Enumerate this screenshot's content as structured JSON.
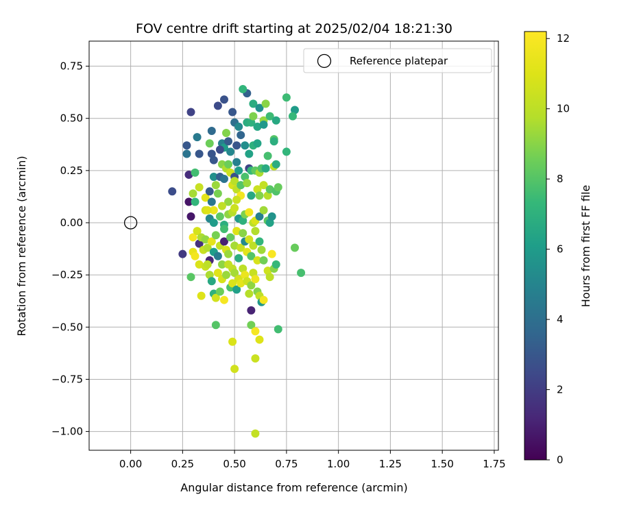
{
  "chart_data": {
    "type": "scatter",
    "title": "FOV centre drift starting at 2025/02/04 18:21:30",
    "xlabel": "Angular distance from reference (arcmin)",
    "ylabel": "Rotation from reference (arcmin)",
    "xlim": [
      -0.2,
      1.77
    ],
    "ylim": [
      -1.09,
      0.87
    ],
    "xticks": [
      0.0,
      0.25,
      0.5,
      0.75,
      1.0,
      1.25,
      1.5,
      1.75
    ],
    "xtick_labels": [
      "0.00",
      "0.25",
      "0.50",
      "0.75",
      "1.00",
      "1.25",
      "1.50",
      "1.75"
    ],
    "yticks": [
      0.75,
      0.5,
      0.25,
      0.0,
      -0.25,
      -0.5,
      -0.75,
      -1.0
    ],
    "ytick_labels": [
      "0.75",
      "0.50",
      "0.25",
      "0.00",
      "−0.25",
      "−0.50",
      "−0.75",
      "−1.00"
    ],
    "grid": true,
    "legend": {
      "position": "top-right",
      "entries": [
        "Reference platepar"
      ]
    },
    "colormap": "viridis",
    "colorbar": {
      "label": "Hours from first FF file",
      "min": 0,
      "max": 12.2,
      "ticks": [
        0,
        2,
        4,
        6,
        8,
        10,
        12
      ],
      "tick_labels": [
        "0",
        "2",
        "4",
        "6",
        "8",
        "10",
        "12"
      ]
    },
    "reference_point": {
      "x": 0.0,
      "y": 0.0
    },
    "points": [
      [
        0.29,
        0.53,
        2.2
      ],
      [
        0.45,
        0.59,
        2.8
      ],
      [
        0.42,
        0.56,
        2.5
      ],
      [
        0.49,
        0.53,
        3.0
      ],
      [
        0.56,
        0.62,
        3.4
      ],
      [
        0.54,
        0.64,
        7.2
      ],
      [
        0.59,
        0.57,
        6.8
      ],
      [
        0.62,
        0.55,
        5.5
      ],
      [
        0.65,
        0.57,
        9.0
      ],
      [
        0.75,
        0.6,
        7.5
      ],
      [
        0.79,
        0.54,
        6.0
      ],
      [
        0.78,
        0.51,
        7.3
      ],
      [
        0.27,
        0.37,
        3.0
      ],
      [
        0.27,
        0.33,
        4.2
      ],
      [
        0.32,
        0.41,
        4.5
      ],
      [
        0.33,
        0.33,
        3.0
      ],
      [
        0.39,
        0.44,
        3.8
      ],
      [
        0.44,
        0.38,
        4.8
      ],
      [
        0.45,
        0.36,
        6.0
      ],
      [
        0.47,
        0.39,
        3.2
      ],
      [
        0.38,
        0.38,
        8.5
      ],
      [
        0.5,
        0.48,
        4.0
      ],
      [
        0.52,
        0.46,
        5.2
      ],
      [
        0.53,
        0.42,
        3.6
      ],
      [
        0.56,
        0.48,
        6.8
      ],
      [
        0.58,
        0.48,
        7.0
      ],
      [
        0.59,
        0.51,
        8.8
      ],
      [
        0.61,
        0.46,
        6.5
      ],
      [
        0.64,
        0.49,
        9.2
      ],
      [
        0.64,
        0.47,
        5.9
      ],
      [
        0.67,
        0.51,
        7.5
      ],
      [
        0.7,
        0.49,
        6.6
      ],
      [
        0.69,
        0.4,
        8.0
      ],
      [
        0.69,
        0.39,
        6.9
      ],
      [
        0.75,
        0.34,
        7.2
      ],
      [
        0.39,
        0.33,
        2.9
      ],
      [
        0.43,
        0.35,
        2.6
      ],
      [
        0.48,
        0.34,
        5.1
      ],
      [
        0.51,
        0.29,
        4.8
      ],
      [
        0.55,
        0.37,
        5.4
      ],
      [
        0.57,
        0.33,
        6.3
      ],
      [
        0.59,
        0.37,
        7.0
      ],
      [
        0.61,
        0.38,
        6.4
      ],
      [
        0.66,
        0.32,
        7.7
      ],
      [
        0.2,
        0.15,
        2.6
      ],
      [
        0.28,
        0.23,
        1.4
      ],
      [
        0.31,
        0.24,
        7.6
      ],
      [
        0.25,
        -0.15,
        1.9
      ],
      [
        0.28,
        0.1,
        0.6
      ],
      [
        0.29,
        0.03,
        0.7
      ],
      [
        0.3,
        0.14,
        9.5
      ],
      [
        0.31,
        0.1,
        7.2
      ],
      [
        0.33,
        0.17,
        10.3
      ],
      [
        0.36,
        0.12,
        11.2
      ],
      [
        0.36,
        0.06,
        10.6
      ],
      [
        0.38,
        0.15,
        3.1
      ],
      [
        0.39,
        0.1,
        4.3
      ],
      [
        0.4,
        0.3,
        3.0
      ],
      [
        0.4,
        0.22,
        5.5
      ],
      [
        0.41,
        0.18,
        9.3
      ],
      [
        0.42,
        0.14,
        8.7
      ],
      [
        0.43,
        0.22,
        3.4
      ],
      [
        0.44,
        0.28,
        9.0
      ],
      [
        0.45,
        0.21,
        4.2
      ],
      [
        0.46,
        0.43,
        8.9
      ],
      [
        0.46,
        0.26,
        9.7
      ],
      [
        0.47,
        0.28,
        8.5
      ],
      [
        0.48,
        0.24,
        10.5
      ],
      [
        0.49,
        0.18,
        10.8
      ],
      [
        0.5,
        0.22,
        2.8
      ],
      [
        0.5,
        0.2,
        9.9
      ],
      [
        0.51,
        0.16,
        10.1
      ],
      [
        0.52,
        0.25,
        6.0
      ],
      [
        0.53,
        0.18,
        8.0
      ],
      [
        0.55,
        0.22,
        7.8
      ],
      [
        0.56,
        0.19,
        9.3
      ],
      [
        0.57,
        0.26,
        2.3
      ],
      [
        0.58,
        0.25,
        7.3
      ],
      [
        0.6,
        0.25,
        8.2
      ],
      [
        0.61,
        0.16,
        10.4
      ],
      [
        0.62,
        0.24,
        9.6
      ],
      [
        0.63,
        0.26,
        7.9
      ],
      [
        0.64,
        0.18,
        10.2
      ],
      [
        0.65,
        0.26,
        6.7
      ],
      [
        0.66,
        0.13,
        9.8
      ],
      [
        0.67,
        0.16,
        8.1
      ],
      [
        0.69,
        0.27,
        10.0
      ],
      [
        0.7,
        0.15,
        7.9
      ],
      [
        0.71,
        0.17,
        8.4
      ],
      [
        0.7,
        0.28,
        6.8
      ],
      [
        0.62,
        0.13,
        8.9
      ],
      [
        0.58,
        0.13,
        6.6
      ],
      [
        0.53,
        0.13,
        11.8
      ],
      [
        0.51,
        0.11,
        10.4
      ],
      [
        0.47,
        0.1,
        9.2
      ],
      [
        0.44,
        0.08,
        10.1
      ],
      [
        0.4,
        0.06,
        11.5
      ],
      [
        0.37,
        0.06,
        11.0
      ],
      [
        0.38,
        0.02,
        5.1
      ],
      [
        0.4,
        0.0,
        6.0
      ],
      [
        0.43,
        0.03,
        8.2
      ],
      [
        0.45,
        -0.01,
        6.9
      ],
      [
        0.47,
        0.04,
        9.1
      ],
      [
        0.49,
        0.05,
        9.8
      ],
      [
        0.5,
        0.07,
        10.4
      ],
      [
        0.52,
        0.02,
        5.9
      ],
      [
        0.54,
        0.01,
        7.0
      ],
      [
        0.55,
        0.04,
        8.8
      ],
      [
        0.57,
        0.05,
        11.7
      ],
      [
        0.59,
        0.0,
        9.9
      ],
      [
        0.6,
        0.01,
        10.9
      ],
      [
        0.62,
        0.03,
        4.8
      ],
      [
        0.64,
        0.06,
        9.4
      ],
      [
        0.66,
        0.01,
        8.1
      ],
      [
        0.67,
        0.0,
        6.3
      ],
      [
        0.68,
        0.03,
        5.6
      ],
      [
        0.3,
        -0.07,
        11.9
      ],
      [
        0.32,
        -0.04,
        10.7
      ],
      [
        0.33,
        -0.1,
        1.5
      ],
      [
        0.34,
        -0.07,
        9.6
      ],
      [
        0.35,
        -0.13,
        10.3
      ],
      [
        0.36,
        -0.08,
        9.2
      ],
      [
        0.37,
        -0.12,
        9.7
      ],
      [
        0.38,
        -0.18,
        1.2
      ],
      [
        0.39,
        -0.09,
        11.3
      ],
      [
        0.4,
        -0.14,
        6.1
      ],
      [
        0.41,
        -0.06,
        8.7
      ],
      [
        0.42,
        -0.16,
        4.6
      ],
      [
        0.43,
        -0.11,
        10.2
      ],
      [
        0.44,
        -0.2,
        9.1
      ],
      [
        0.45,
        -0.03,
        7.6
      ],
      [
        0.45,
        -0.09,
        1.0
      ],
      [
        0.46,
        -0.13,
        10.8
      ],
      [
        0.47,
        -0.15,
        9.3
      ],
      [
        0.48,
        -0.07,
        8.3
      ],
      [
        0.49,
        -0.22,
        10.1
      ],
      [
        0.5,
        -0.11,
        9.5
      ],
      [
        0.51,
        -0.04,
        11.0
      ],
      [
        0.52,
        -0.17,
        6.8
      ],
      [
        0.53,
        -0.12,
        10.3
      ],
      [
        0.54,
        -0.05,
        9.0
      ],
      [
        0.55,
        -0.09,
        5.2
      ],
      [
        0.56,
        -0.14,
        11.2
      ],
      [
        0.57,
        -0.08,
        10.6
      ],
      [
        0.58,
        -0.16,
        8.0
      ],
      [
        0.59,
        -0.11,
        10.0
      ],
      [
        0.6,
        -0.04,
        9.7
      ],
      [
        0.61,
        -0.18,
        10.8
      ],
      [
        0.62,
        -0.09,
        7.2
      ],
      [
        0.63,
        -0.13,
        9.4
      ],
      [
        0.64,
        -0.18,
        8.6
      ],
      [
        0.66,
        -0.23,
        10.5
      ],
      [
        0.67,
        -0.26,
        10.0
      ],
      [
        0.68,
        -0.15,
        12.0
      ],
      [
        0.69,
        -0.22,
        9.0
      ],
      [
        0.7,
        -0.2,
        7.3
      ],
      [
        0.29,
        -0.26,
        8.1
      ],
      [
        0.3,
        -0.14,
        11.4
      ],
      [
        0.31,
        -0.16,
        11.8
      ],
      [
        0.33,
        -0.2,
        10.9
      ],
      [
        0.34,
        -0.35,
        11.0
      ],
      [
        0.36,
        -0.21,
        10.4
      ],
      [
        0.37,
        -0.2,
        10.0
      ],
      [
        0.38,
        -0.25,
        9.6
      ],
      [
        0.39,
        -0.28,
        6.6
      ],
      [
        0.4,
        -0.34,
        7.0
      ],
      [
        0.41,
        -0.36,
        10.6
      ],
      [
        0.42,
        -0.24,
        11.1
      ],
      [
        0.43,
        -0.33,
        8.5
      ],
      [
        0.44,
        -0.27,
        10.8
      ],
      [
        0.45,
        -0.37,
        11.9
      ],
      [
        0.46,
        -0.25,
        9.3
      ],
      [
        0.47,
        -0.2,
        10.2
      ],
      [
        0.48,
        -0.31,
        7.8
      ],
      [
        0.49,
        -0.29,
        10.9
      ],
      [
        0.5,
        -0.24,
        9.5
      ],
      [
        0.51,
        -0.32,
        6.2
      ],
      [
        0.52,
        -0.27,
        10.7
      ],
      [
        0.53,
        -0.29,
        11.3
      ],
      [
        0.54,
        -0.22,
        10.0
      ],
      [
        0.55,
        -0.25,
        11.5
      ],
      [
        0.56,
        -0.28,
        10.5
      ],
      [
        0.57,
        -0.34,
        9.8
      ],
      [
        0.58,
        -0.3,
        9.1
      ],
      [
        0.59,
        -0.24,
        10.3
      ],
      [
        0.6,
        -0.27,
        11.6
      ],
      [
        0.61,
        -0.33,
        8.9
      ],
      [
        0.62,
        -0.35,
        10.1
      ],
      [
        0.63,
        -0.38,
        5.8
      ],
      [
        0.64,
        -0.37,
        11.8
      ],
      [
        0.58,
        -0.42,
        1.1
      ],
      [
        0.41,
        -0.49,
        8.0
      ],
      [
        0.58,
        -0.49,
        8.6
      ],
      [
        0.6,
        -0.52,
        11.9
      ],
      [
        0.62,
        -0.56,
        11.0
      ],
      [
        0.71,
        -0.51,
        7.6
      ],
      [
        0.49,
        -0.57,
        10.9
      ],
      [
        0.6,
        -0.65,
        10.4
      ],
      [
        0.5,
        -0.7,
        10.6
      ],
      [
        0.6,
        -1.01,
        10.2
      ],
      [
        0.79,
        -0.12,
        8.4
      ],
      [
        0.82,
        -0.24,
        7.7
      ],
      [
        0.51,
        0.37,
        2.9
      ]
    ]
  }
}
